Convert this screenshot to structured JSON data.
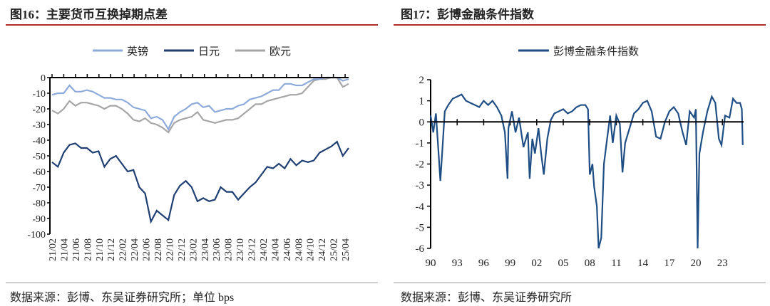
{
  "left": {
    "title": "图16：主要货币互换掉期点差",
    "source": "数据来源：彭博、东吴证券研究所；单位 bps"
  },
  "right": {
    "title": "图17：彭博金融条件指数",
    "source": "数据来源：彭博、东吴证券研究所"
  },
  "chart_data": [
    {
      "type": "line",
      "title": "主要货币互换掉期点差",
      "ylabel": "bps",
      "ylim": [
        -100,
        0
      ],
      "yticks": [
        0,
        -10,
        -20,
        -30,
        -40,
        -50,
        -60,
        -70,
        -80,
        -90,
        -100
      ],
      "xticks": [
        "21/02",
        "21/04",
        "21/06",
        "21/08",
        "21/10",
        "21/12",
        "22/02",
        "22/04",
        "22/06",
        "22/08",
        "22/10",
        "22/12",
        "23/02",
        "23/04",
        "23/06",
        "23/08",
        "23/10",
        "23/12",
        "24/02",
        "24/04",
        "24/06",
        "24/08",
        "24/10",
        "24/12",
        "25/02",
        "25/04"
      ],
      "legend_position": "top",
      "series": [
        {
          "name": "英镑",
          "color": "#8eaadb",
          "values": [
            -11,
            -10,
            -10,
            -5,
            -9,
            -9,
            -8,
            -9,
            -11,
            -13,
            -13,
            -14,
            -14,
            -16,
            -19,
            -20,
            -21,
            -26,
            -25,
            -27,
            -33,
            -25,
            -22,
            -20,
            -17,
            -16,
            -19,
            -18,
            -22,
            -21,
            -20,
            -20,
            -18,
            -17,
            -14,
            -13,
            -12,
            -10,
            -8,
            -8,
            -4,
            -4,
            -5,
            -5,
            -3,
            -1,
            -1,
            0,
            0,
            0,
            -2,
            -1
          ]
        },
        {
          "name": "日元",
          "color": "#1f3f73",
          "values": [
            -54,
            -57,
            -48,
            -43,
            -42,
            -45,
            -45,
            -48,
            -47,
            -57,
            -52,
            -50,
            -55,
            -60,
            -59,
            -70,
            -74,
            -92,
            -85,
            -88,
            -91,
            -75,
            -69,
            -66,
            -70,
            -79,
            -77,
            -79,
            -78,
            -70,
            -73,
            -73,
            -78,
            -74,
            -70,
            -67,
            -62,
            -57,
            -58,
            -55,
            -58,
            -52,
            -56,
            -53,
            -54,
            -53,
            -48,
            -46,
            -44,
            -41,
            -50,
            -45
          ]
        },
        {
          "name": "欧元",
          "color": "#a6a6a6",
          "values": [
            -21,
            -23,
            -20,
            -15,
            -18,
            -16,
            -16,
            -17,
            -18,
            -20,
            -18,
            -18,
            -20,
            -23,
            -27,
            -28,
            -26,
            -29,
            -30,
            -32,
            -35,
            -29,
            -27,
            -26,
            -25,
            -22,
            -27,
            -28,
            -29,
            -28,
            -27,
            -27,
            -26,
            -23,
            -20,
            -17,
            -17,
            -15,
            -14,
            -13,
            -12,
            -11,
            -11,
            -10,
            -6,
            -2,
            -1,
            -1,
            0,
            0,
            -6,
            -4
          ]
        }
      ]
    },
    {
      "type": "line",
      "title": "彭博金融条件指数",
      "ylim": [
        -6,
        2
      ],
      "yticks": [
        2,
        1,
        0,
        -1,
        -2,
        -3,
        -4,
        -5,
        -6
      ],
      "xticks": [
        "90",
        "93",
        "96",
        "99",
        "02",
        "05",
        "08",
        "11",
        "14",
        "17",
        "20",
        "23"
      ],
      "xlim": [
        1990,
        2025.4
      ],
      "legend_position": "top",
      "series": [
        {
          "name": "彭博金融条件指数",
          "color": "#1f4e85",
          "x": [
            1990,
            1990.3,
            1990.6,
            1990.9,
            1991.1,
            1991.3,
            1991.6,
            1992,
            1992.5,
            1993,
            1993.5,
            1994,
            1994.5,
            1995,
            1995.5,
            1996,
            1996.5,
            1997,
            1997.5,
            1998,
            1998.4,
            1998.7,
            1998.8,
            1999.2,
            1999.6,
            2000,
            2000.5,
            2001,
            2001.2,
            2001.5,
            2001.8,
            2002.2,
            2002.5,
            2002.8,
            2003.2,
            2003.6,
            2004,
            2004.5,
            2005,
            2005.5,
            2006,
            2006.5,
            2007,
            2007.5,
            2007.8,
            2008,
            2008.3,
            2008.5,
            2008.8,
            2009,
            2009.3,
            2009.6,
            2009.9,
            2010.3,
            2010.6,
            2011,
            2011.4,
            2011.7,
            2012,
            2012.5,
            2013,
            2013.5,
            2014,
            2014.5,
            2015,
            2015.5,
            2016,
            2016.5,
            2017,
            2017.5,
            2018,
            2018.5,
            2018.9,
            2019.3,
            2019.8,
            2020,
            2020.2,
            2020.4,
            2020.8,
            2021.3,
            2021.8,
            2022.2,
            2022.6,
            2022.9,
            2023.3,
            2023.8,
            2024.2,
            2024.6,
            2025,
            2025.2,
            2025.3
          ],
          "y": [
            0.3,
            -0.5,
            0.4,
            -1.5,
            -2.8,
            -1.5,
            0.5,
            0.8,
            1.1,
            1.2,
            1.3,
            1.0,
            0.9,
            0.8,
            0.7,
            1.0,
            0.8,
            1.0,
            0.7,
            0.3,
            -0.5,
            -2.7,
            -0.3,
            0.5,
            -0.5,
            0.2,
            -1.2,
            -0.5,
            -2.7,
            -0.8,
            -1.5,
            -0.3,
            -1.5,
            -2.5,
            -0.8,
            0.1,
            0.4,
            0.5,
            0.6,
            0.4,
            0.5,
            0.7,
            0.8,
            0.8,
            0.6,
            -2.5,
            -2.0,
            -3.1,
            -4.0,
            -6.2,
            -5.5,
            -2.0,
            -1.0,
            0.3,
            -1.0,
            0.3,
            -0.1,
            -2.4,
            -1.0,
            -0.3,
            0.4,
            0.6,
            0.9,
            1.0,
            0.5,
            -0.7,
            -0.8,
            0.0,
            0.5,
            0.7,
            0.4,
            -0.5,
            -1.1,
            0.5,
            0.2,
            0.6,
            -6.0,
            -1.5,
            -0.5,
            0.5,
            1.2,
            0.9,
            -0.8,
            -1.1,
            0.3,
            0.2,
            1.1,
            0.9,
            0.9,
            0.6,
            -1.1
          ]
        }
      ]
    }
  ]
}
